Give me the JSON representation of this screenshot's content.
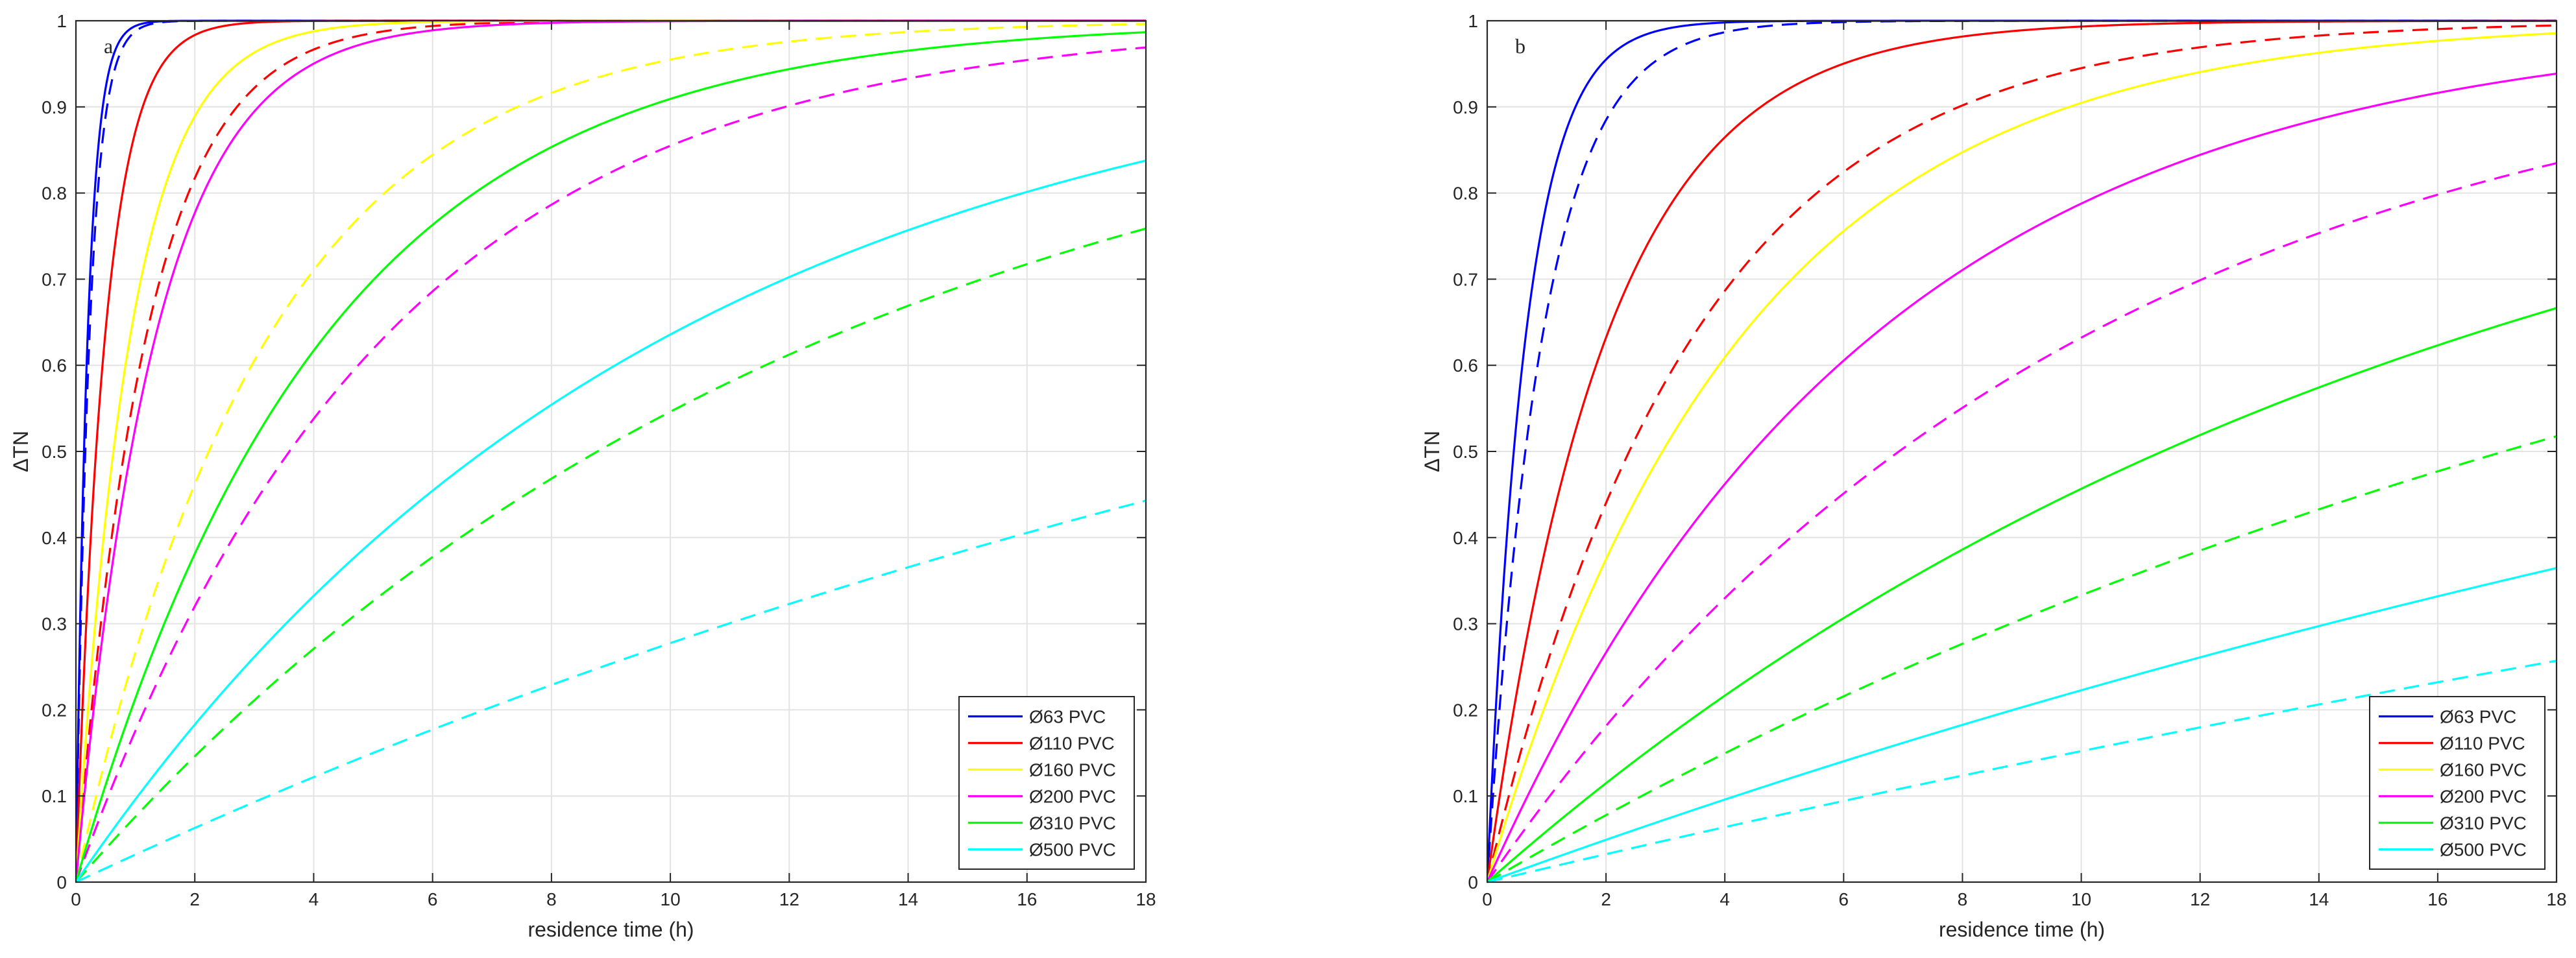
{
  "chart_data": [
    {
      "type": "line",
      "panel": "a",
      "xlabel": "residence time (h)",
      "ylabel": "ΔTN",
      "xlim": [
        0,
        18
      ],
      "ylim": [
        0,
        1
      ],
      "xticks": [
        "0",
        "2",
        "4",
        "6",
        "8",
        "10",
        "12",
        "14",
        "16",
        "18"
      ],
      "yticks": [
        "0",
        "0.1",
        "0.2",
        "0.3",
        "0.4",
        "0.5",
        "0.6",
        "0.7",
        "0.8",
        "0.9",
        "1"
      ],
      "grid": true,
      "legend_position": "bottom-right",
      "legend": [
        {
          "label": "Ø63 PVC",
          "color": "#0000ff"
        },
        {
          "label": "Ø110 PVC",
          "color": "#ff0000"
        },
        {
          "label": "Ø160 PVC",
          "color": "#ffff00"
        },
        {
          "label": "Ø200 PVC",
          "color": "#ff00ff"
        },
        {
          "label": "Ø310 PVC",
          "color": "#00ff00"
        },
        {
          "label": "Ø500 PVC",
          "color": "#00ffff"
        }
      ],
      "series": [
        {
          "name": "Ø63 PVC",
          "style": "solid",
          "color": "#0000ff",
          "k": 5.1
        },
        {
          "name": "Ø63 PVC",
          "style": "dashed",
          "color": "#0000ff",
          "k": 4.4
        },
        {
          "name": "Ø110 PVC",
          "style": "solid",
          "color": "#ff0000",
          "k": 2.05
        },
        {
          "name": "Ø110 PVC",
          "style": "dashed",
          "color": "#ff0000",
          "k": 0.85
        },
        {
          "name": "Ø160 PVC",
          "style": "solid",
          "color": "#ffff00",
          "k": 1.1
        },
        {
          "name": "Ø160 PVC",
          "style": "dashed",
          "color": "#ffff00",
          "k": 0.31
        },
        {
          "name": "Ø200 PVC",
          "style": "solid",
          "color": "#ff00ff",
          "k": 0.75
        },
        {
          "name": "Ø200 PVC",
          "style": "dashed",
          "color": "#ff00ff",
          "k": 0.193
        },
        {
          "name": "Ø310 PVC",
          "style": "solid",
          "color": "#00ff00",
          "k": 0.24
        },
        {
          "name": "Ø310 PVC",
          "style": "dashed",
          "color": "#00ff00",
          "k": 0.079
        },
        {
          "name": "Ø500 PVC",
          "style": "solid",
          "color": "#00ffff",
          "k": 0.101
        },
        {
          "name": "Ø500 PVC",
          "style": "dashed",
          "color": "#00ffff",
          "k": 0.0325
        }
      ]
    },
    {
      "type": "line",
      "panel": "b",
      "xlabel": "residence time (h)",
      "ylabel": "ΔTN",
      "xlim": [
        0,
        18
      ],
      "ylim": [
        0,
        1
      ],
      "xticks": [
        "0",
        "2",
        "4",
        "6",
        "8",
        "10",
        "12",
        "14",
        "16",
        "18"
      ],
      "yticks": [
        "0",
        "0.1",
        "0.2",
        "0.3",
        "0.4",
        "0.5",
        "0.6",
        "0.7",
        "0.8",
        "0.9",
        "1"
      ],
      "grid": true,
      "legend_position": "bottom-right",
      "legend": [
        {
          "label": "Ø63 PVC",
          "color": "#0000ff"
        },
        {
          "label": "Ø110 PVC",
          "color": "#ff0000"
        },
        {
          "label": "Ø160 PVC",
          "color": "#ffff00"
        },
        {
          "label": "Ø200 PVC",
          "color": "#ff00ff"
        },
        {
          "label": "Ø310 PVC",
          "color": "#00ff00"
        },
        {
          "label": "Ø500 PVC",
          "color": "#00ffff"
        }
      ],
      "series": [
        {
          "name": "Ø63 PVC",
          "style": "solid",
          "color": "#0000ff",
          "k": 1.55
        },
        {
          "name": "Ø63 PVC",
          "style": "dashed",
          "color": "#0000ff",
          "k": 1.08
        },
        {
          "name": "Ø110 PVC",
          "style": "solid",
          "color": "#ff0000",
          "k": 0.5
        },
        {
          "name": "Ø110 PVC",
          "style": "dashed",
          "color": "#ff0000",
          "k": 0.29
        },
        {
          "name": "Ø160 PVC",
          "style": "solid",
          "color": "#ffff00",
          "k": 0.235
        },
        {
          "name": "Ø200 PVC",
          "style": "solid",
          "color": "#ff00ff",
          "k": 0.155
        },
        {
          "name": "Ø200 PVC",
          "style": "dashed",
          "color": "#ff00ff",
          "k": 0.1
        },
        {
          "name": "Ø310 PVC",
          "style": "solid",
          "color": "#00ff00",
          "k": 0.061
        },
        {
          "name": "Ø310 PVC",
          "style": "dashed",
          "color": "#00ff00",
          "k": 0.0405
        },
        {
          "name": "Ø500 PVC",
          "style": "solid",
          "color": "#00ffff",
          "k": 0.0252
        },
        {
          "name": "Ø500 PVC",
          "style": "dashed",
          "color": "#00ffff",
          "k": 0.0165
        }
      ]
    }
  ]
}
